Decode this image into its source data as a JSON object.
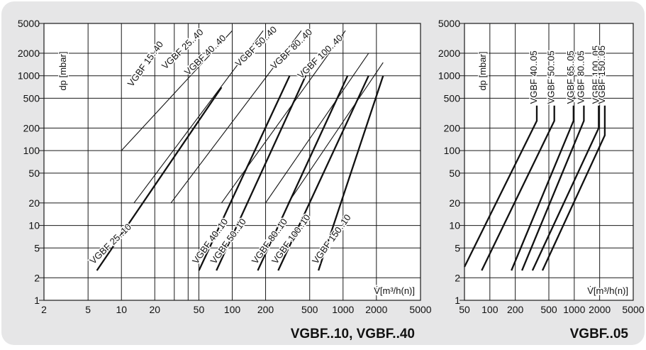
{
  "chart_data": [
    {
      "type": "line",
      "caption": "VGBF..10,  VGBF..40",
      "xscale": "log",
      "yscale": "log",
      "xlim": [
        2,
        5000
      ],
      "ylim": [
        1,
        5000
      ],
      "grid": true,
      "xticks": [
        2,
        5,
        10,
        20,
        50,
        100,
        200,
        500,
        1000,
        2000,
        5000
      ],
      "xtick_labels": [
        "2",
        "5",
        "10",
        "20",
        "50",
        "100",
        "200",
        "500",
        "1000",
        "2000",
        "5000"
      ],
      "extra_vertical_gridlines": [
        30,
        40
      ],
      "yticks": [
        1,
        2,
        5,
        10,
        20,
        50,
        100,
        200,
        500,
        1000,
        2000,
        5000
      ],
      "ytick_labels": [
        "1",
        "2",
        "5",
        "10",
        "20",
        "50",
        "100",
        "200",
        "500",
        "1000",
        "2000",
        "5000"
      ],
      "ylabel": "dp [mbar]",
      "xlabel": "V̇[m³/h(n)]",
      "series": [
        {
          "name": "VGBF 15..40",
          "weight": "thin",
          "points": [
            [
              10,
              100
            ],
            [
              100,
              4000
            ]
          ]
        },
        {
          "name": "VGBF 25..40",
          "weight": "thin",
          "points": [
            [
              13,
              20
            ],
            [
              190,
              4000
            ]
          ]
        },
        {
          "name": "VGBF 40..40",
          "weight": "thin",
          "points": [
            [
              28,
              20
            ],
            [
              420,
              4000
            ]
          ]
        },
        {
          "name": "VGBF 50..40",
          "weight": "thin",
          "points": [
            [
              80,
              20
            ],
            [
              1050,
              4000
            ]
          ]
        },
        {
          "name": "VGBF 80..40",
          "weight": "thin",
          "points": [
            [
              200,
              20
            ],
            [
              1700,
              2000
            ]
          ]
        },
        {
          "name": "VGBF 100..40",
          "weight": "thin",
          "points": [
            [
              320,
              20
            ],
            [
              2300,
              1500
            ]
          ]
        },
        {
          "name": "VGBF 25..10",
          "weight": "bold",
          "points": [
            [
              6,
              2.5
            ],
            [
              80,
              700
            ]
          ]
        },
        {
          "name": "VGBF 40..10",
          "weight": "bold",
          "points": [
            [
              50,
              2.5
            ],
            [
              330,
              1000
            ]
          ]
        },
        {
          "name": "VGBF 50..10",
          "weight": "bold",
          "points": [
            [
              72,
              2.5
            ],
            [
              460,
              1000
            ]
          ]
        },
        {
          "name": "VGBF 80..10",
          "weight": "bold",
          "points": [
            [
              170,
              2.5
            ],
            [
              1100,
              1000
            ]
          ]
        },
        {
          "name": "VGBF 100..10",
          "weight": "bold",
          "points": [
            [
              260,
              2.5
            ],
            [
              1700,
              1000
            ]
          ]
        },
        {
          "name": "VGBF 150..10",
          "weight": "bold",
          "points": [
            [
              600,
              2.5
            ],
            [
              2300,
              1000
            ]
          ]
        }
      ]
    },
    {
      "type": "line",
      "caption": "VGBF..05",
      "xscale": "log",
      "yscale": "log",
      "xlim": [
        50,
        5000
      ],
      "ylim": [
        1,
        5000
      ],
      "grid": true,
      "xticks": [
        50,
        100,
        200,
        500,
        1000,
        2000,
        5000
      ],
      "xtick_labels": [
        "50",
        "100",
        "200",
        "500",
        "1000",
        "2000",
        "5000"
      ],
      "yticks": [
        1,
        2,
        5,
        10,
        20,
        50,
        100,
        200,
        500,
        1000,
        2000,
        5000
      ],
      "ytick_labels": [
        "1",
        "2",
        "5",
        "10",
        "20",
        "50",
        "100",
        "200",
        "500",
        "1000",
        "2000",
        "5000"
      ],
      "ylabel": "dp [mbar]",
      "xlabel": "V̇[m³/h(n)]",
      "series": [
        {
          "name": "VGBF 40..05",
          "points": [
            [
              50,
              2.8
            ],
            [
              360,
              250
            ],
            [
              360,
              400
            ]
          ]
        },
        {
          "name": "VGBF 50..05",
          "points": [
            [
              80,
              2.5
            ],
            [
              580,
              250
            ],
            [
              580,
              400
            ]
          ]
        },
        {
          "name": "VGBF 65..05",
          "points": [
            [
              180,
              2.5
            ],
            [
              980,
              250
            ],
            [
              980,
              400
            ]
          ]
        },
        {
          "name": "VGBF 80..05",
          "points": [
            [
              240,
              2.5
            ],
            [
              1300,
              250
            ],
            [
              1300,
              400
            ]
          ]
        },
        {
          "name": "VGBF 100..05",
          "points": [
            [
              320,
              2.5
            ],
            [
              1950,
              200
            ],
            [
              1950,
              400
            ]
          ]
        },
        {
          "name": "VGBF 150..05",
          "points": [
            [
              420,
              2.5
            ],
            [
              2300,
              160
            ],
            [
              2300,
              400
            ]
          ]
        }
      ]
    }
  ]
}
